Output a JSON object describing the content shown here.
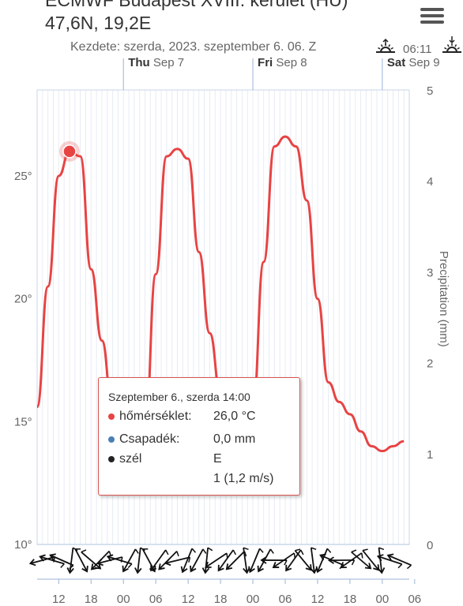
{
  "header": {
    "title": "ECMWF Budapest XVIII. kerület (HU)",
    "coords": "47,6N, 19,2E",
    "start": "Kezdete: szerda, 2023. szeptember 6. 06. Z",
    "sunrise_time": "06:11"
  },
  "menu_icon": "hamburger-menu-icon",
  "days": [
    {
      "bold": "Thu",
      "rest": " Sep 7"
    },
    {
      "bold": "Fri",
      "rest": " Sep 8"
    },
    {
      "bold": "Sat",
      "rest": " Sep 9"
    }
  ],
  "chart_data": {
    "type": "line",
    "xlabel": "",
    "x_ticks": [
      "12",
      "18",
      "00",
      "06",
      "12",
      "18",
      "00",
      "06",
      "12",
      "18",
      "00",
      "06"
    ],
    "y_ticks": [
      "10°",
      "15°",
      "20°",
      "25°"
    ],
    "y2_ticks": [
      "0",
      "1",
      "2",
      "3",
      "4",
      "5"
    ],
    "y2label": "Precipitation (mm)",
    "ylim": [
      10,
      28.5
    ],
    "y2lim": [
      0,
      5
    ],
    "x_hours_range": [
      8,
      77
    ],
    "series": [
      {
        "name": "hőmérséklet",
        "color": "#e84343",
        "hours": [
          8,
          10,
          12,
          14,
          16,
          18,
          20,
          22,
          24,
          26,
          28,
          30,
          32,
          34,
          36,
          38,
          40,
          42,
          44,
          46,
          48,
          50,
          52,
          54,
          56,
          58,
          60,
          62,
          64,
          66,
          68,
          70,
          72,
          74,
          76
        ],
        "values": [
          15.6,
          20.5,
          25.0,
          26.0,
          25.8,
          21.2,
          18.3,
          15.5,
          14.2,
          13.9,
          14.6,
          21.0,
          25.8,
          26.1,
          25.7,
          21.9,
          18.6,
          16.2,
          14.6,
          14.6,
          15.6,
          21.5,
          26.2,
          26.6,
          26.2,
          24.0,
          20.0,
          16.6,
          15.8,
          15.3,
          14.6,
          14.0,
          13.8,
          14.0,
          14.2
        ]
      },
      {
        "name": "Csapadék",
        "color": "#4a7fb5",
        "values": [
          0,
          0,
          0,
          0,
          0,
          0,
          0,
          0,
          0,
          0,
          0,
          0,
          0,
          0,
          0,
          0,
          0,
          0,
          0,
          0,
          0,
          0,
          0,
          0,
          0,
          0,
          0,
          0,
          0,
          0,
          0,
          0,
          0,
          0,
          0
        ]
      }
    ],
    "wind_arrows": 38,
    "highlight": {
      "hour": 14,
      "value": 26.0
    }
  },
  "tooltip": {
    "header": "Szeptember 6., szerda 14:00",
    "rows": [
      {
        "label": "hőmérséklet:",
        "value": "26,0 °C",
        "color": "#e84343"
      },
      {
        "label": "Csapadék:",
        "value": "0,0 mm",
        "color": "#4a7fb5"
      },
      {
        "label": "szél",
        "value": "E",
        "color": "#222"
      }
    ],
    "extra": "1 (1,2 m/s)"
  }
}
